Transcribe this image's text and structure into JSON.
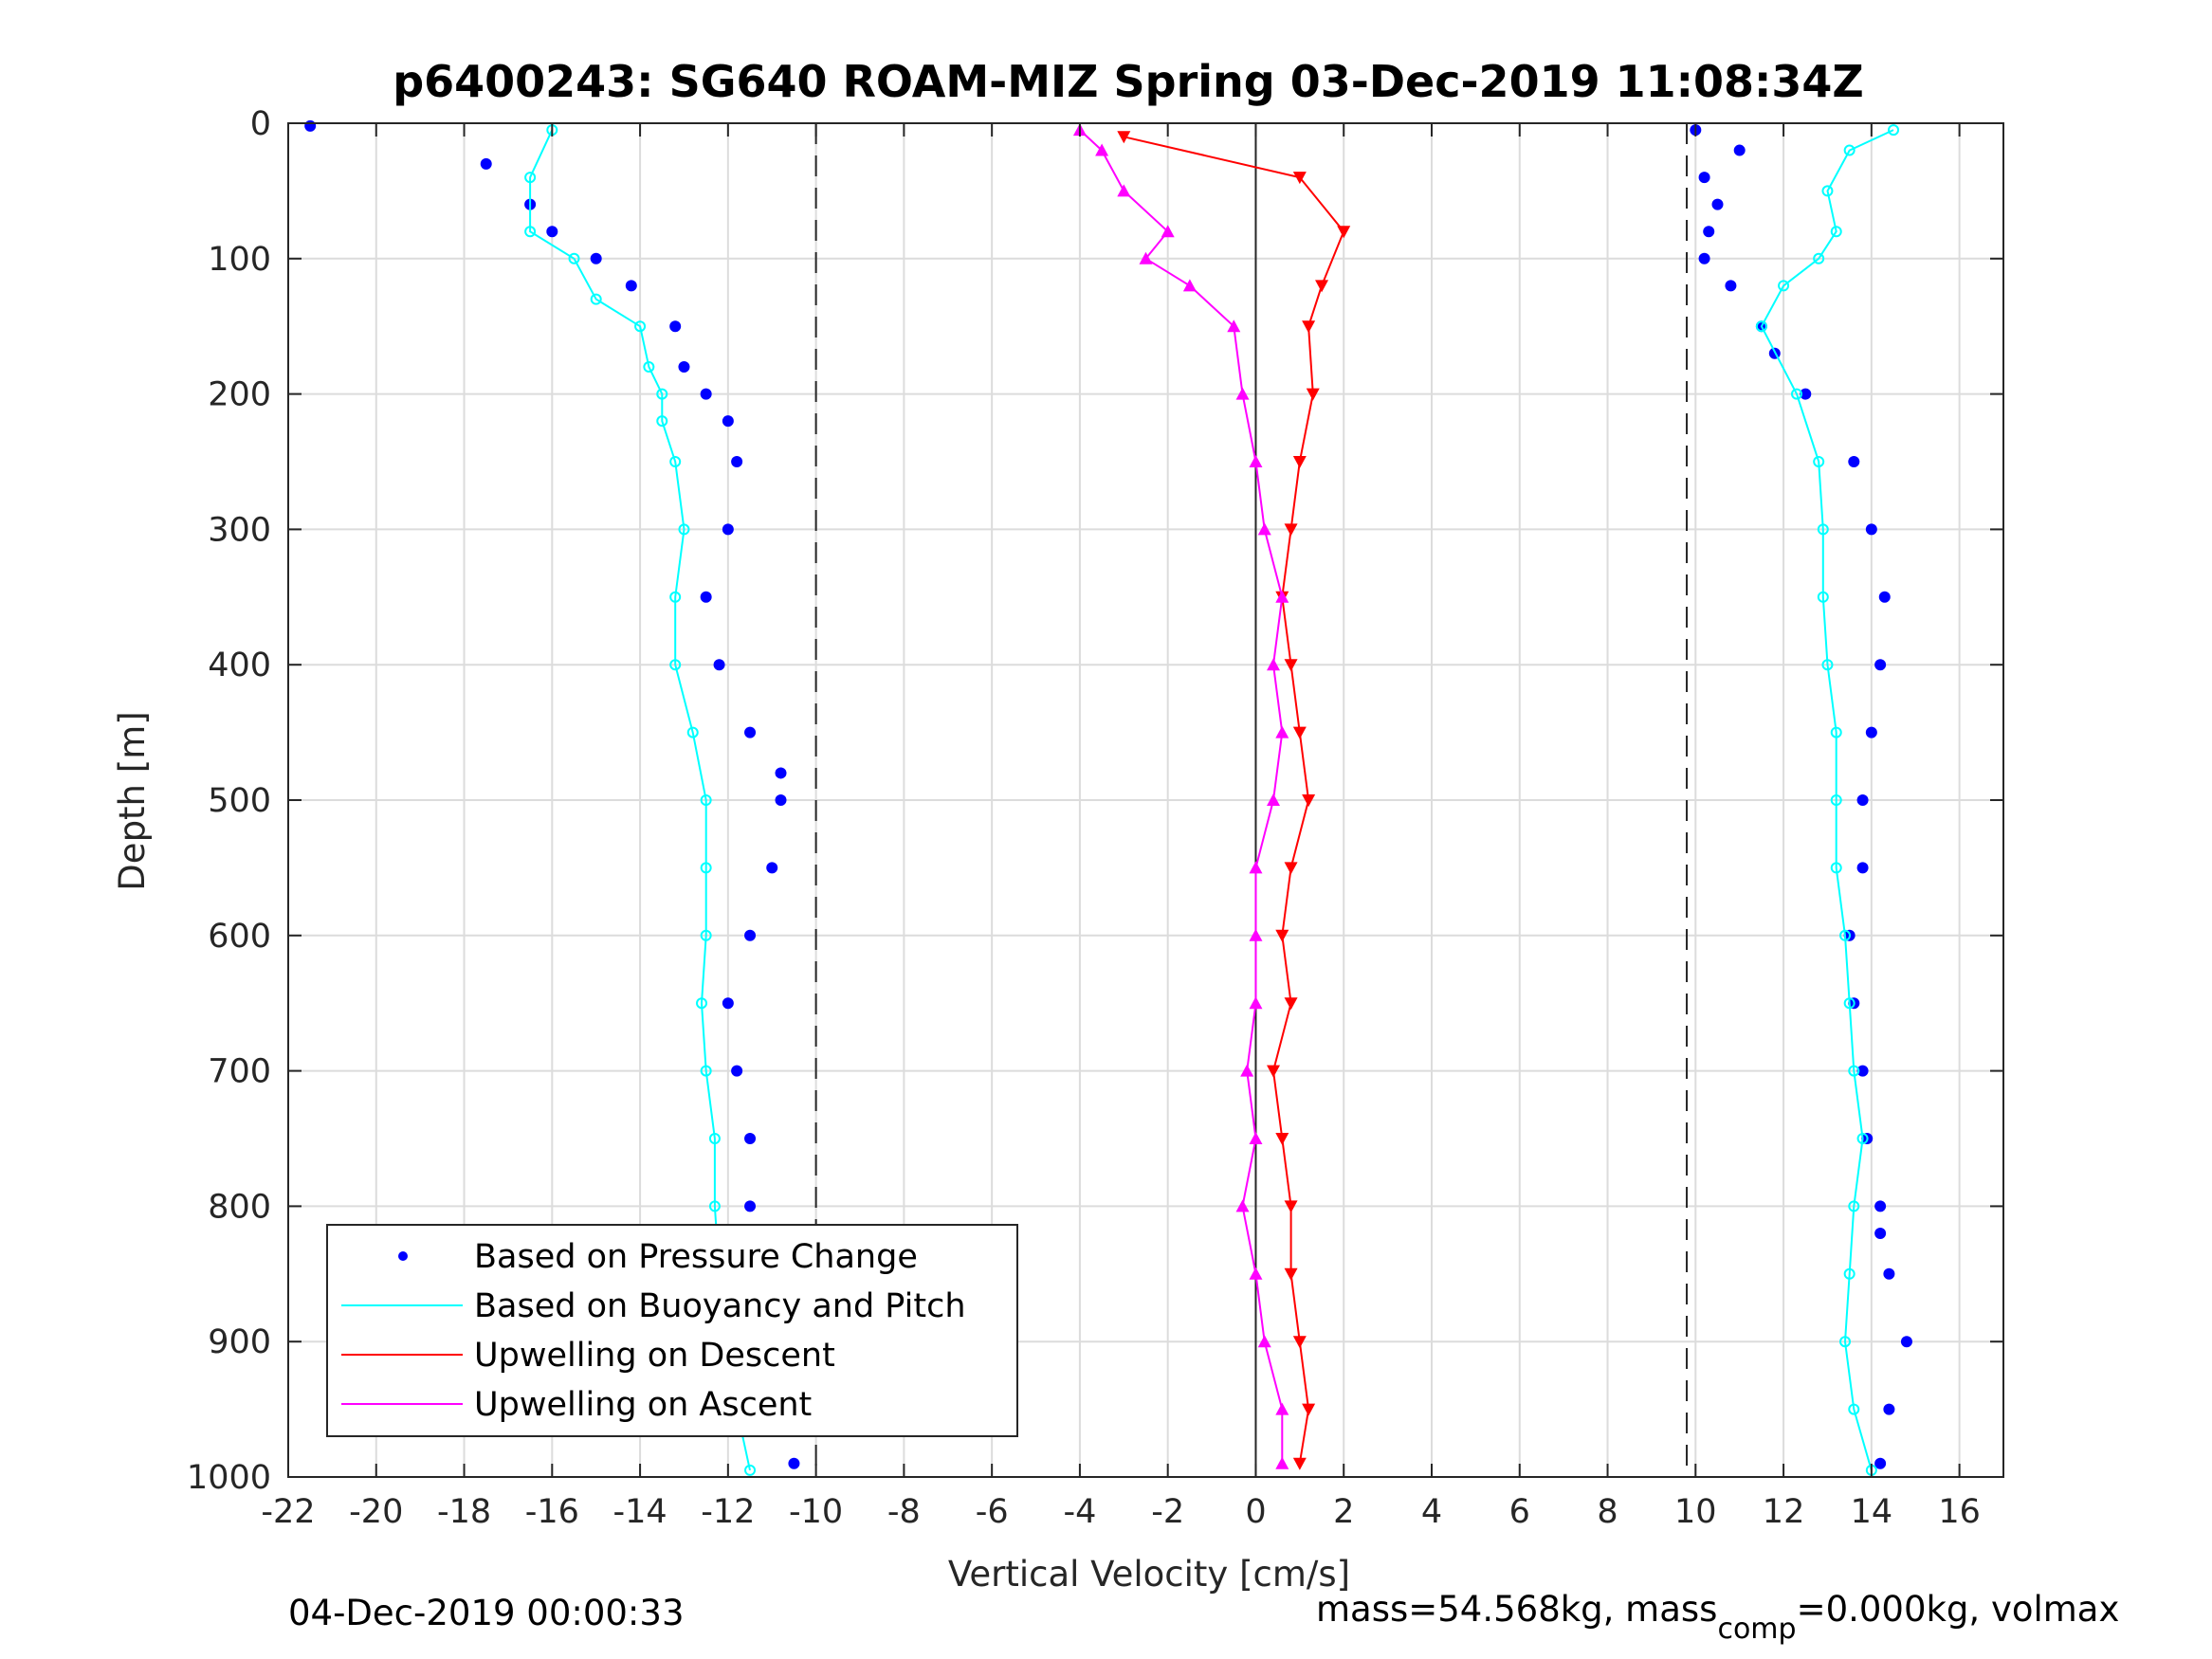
{
  "chart_data": {
    "type": "line",
    "title": "p6400243: SG640 ROAM-MIZ Spring 03-Dec-2019 11:08:34Z",
    "xlabel": "Vertical Velocity [cm/s]",
    "ylabel": "Depth [m]",
    "xlim": [
      -22,
      17
    ],
    "ylim": [
      1000,
      0
    ],
    "y_reversed": true,
    "grid": true,
    "xticks": [
      "-22",
      "-20",
      "-18",
      "-16",
      "-14",
      "-12",
      "-10",
      "-8",
      "-6",
      "-4",
      "-2",
      "0",
      "2",
      "4",
      "6",
      "8",
      "10",
      "12",
      "14",
      "16"
    ],
    "yticks": [
      "0",
      "100",
      "200",
      "300",
      "400",
      "500",
      "600",
      "700",
      "800",
      "900",
      "1000"
    ],
    "reference_lines": [
      {
        "x": -10,
        "style": "dashed"
      },
      {
        "x": 0,
        "style": "solid"
      },
      {
        "x": 9.8,
        "style": "dashed"
      }
    ],
    "legend_location": "bottom-left",
    "series": [
      {
        "name": "Based on Pressure Change",
        "marker": "dot",
        "color": "#0000ff",
        "segments": [
          {
            "depth": [
              2,
              30,
              60,
              80,
              100,
              120,
              150,
              180,
              200,
              220,
              250,
              300,
              350,
              400,
              450,
              480,
              500,
              550,
              600,
              650,
              700,
              750,
              800,
              850,
              900,
              950,
              990
            ],
            "velocity": [
              -21.5,
              -17.5,
              -16.5,
              -16,
              -15,
              -14.2,
              -13.2,
              -13,
              -12.5,
              -12,
              -11.8,
              -12,
              -12.5,
              -12.2,
              -11.5,
              -10.8,
              -10.8,
              -11,
              -11.5,
              -12,
              -11.8,
              -11.5,
              -11.5,
              -11.2,
              -11,
              -10.5,
              -10.5
            ]
          },
          {
            "depth": [
              990,
              950,
              900,
              850,
              820,
              800,
              750,
              700,
              650,
              600,
              550,
              500,
              450,
              400,
              350,
              300,
              250,
              200,
              170,
              150,
              120,
              100,
              80,
              60,
              40,
              20,
              5
            ],
            "velocity": [
              14.2,
              14.4,
              14.8,
              14.4,
              14.2,
              14.2,
              13.9,
              13.8,
              13.6,
              13.5,
              13.8,
              13.8,
              14,
              14.2,
              14.3,
              14,
              13.6,
              12.5,
              11.8,
              11.5,
              10.8,
              10.2,
              10.3,
              10.5,
              10.2,
              11,
              10
            ]
          }
        ]
      },
      {
        "name": "Based on Buoyancy and Pitch",
        "marker": "circle-line",
        "color": "#00ffff",
        "segments": [
          {
            "depth": [
              5,
              40,
              80,
              100,
              130,
              150,
              180,
              200,
              220,
              250,
              300,
              350,
              400,
              450,
              500,
              550,
              600,
              650,
              700,
              750,
              800,
              850,
              900,
              950,
              995
            ],
            "velocity": [
              -16,
              -16.5,
              -16.5,
              -15.5,
              -15,
              -14,
              -13.8,
              -13.5,
              -13.5,
              -13.2,
              -13,
              -13.2,
              -13.2,
              -12.8,
              -12.5,
              -12.5,
              -12.5,
              -12.6,
              -12.5,
              -12.3,
              -12.3,
              -12.2,
              -12,
              -11.8,
              -11.5
            ]
          },
          {
            "depth": [
              995,
              950,
              900,
              850,
              800,
              750,
              700,
              650,
              600,
              550,
              500,
              450,
              400,
              350,
              300,
              250,
              200,
              150,
              120,
              100,
              80,
              50,
              20,
              5
            ],
            "velocity": [
              14,
              13.6,
              13.4,
              13.5,
              13.6,
              13.8,
              13.6,
              13.5,
              13.4,
              13.2,
              13.2,
              13.2,
              13,
              12.9,
              12.9,
              12.8,
              12.3,
              11.5,
              12,
              12.8,
              13.2,
              13,
              13.5,
              14.5
            ]
          }
        ]
      },
      {
        "name": "Upwelling on Descent",
        "marker": "triangle-down",
        "color": "#ff0000",
        "depth": [
          10,
          40,
          80,
          120,
          150,
          200,
          250,
          300,
          350,
          400,
          450,
          500,
          550,
          600,
          650,
          700,
          750,
          800,
          850,
          900,
          950,
          990
        ],
        "velocity": [
          -3,
          1,
          2,
          1.5,
          1.2,
          1.3,
          1,
          0.8,
          0.6,
          0.8,
          1,
          1.2,
          0.8,
          0.6,
          0.8,
          0.4,
          0.6,
          0.8,
          0.8,
          1,
          1.2,
          1
        ]
      },
      {
        "name": "Upwelling on Ascent",
        "marker": "triangle-up",
        "color": "#ff00ff",
        "depth": [
          990,
          950,
          900,
          850,
          800,
          750,
          700,
          650,
          600,
          550,
          500,
          450,
          400,
          350,
          300,
          250,
          200,
          150,
          120,
          100,
          80,
          50,
          20,
          5
        ],
        "velocity": [
          0.6,
          0.6,
          0.2,
          0,
          -0.3,
          0,
          -0.2,
          0,
          0,
          0,
          0.4,
          0.6,
          0.4,
          0.6,
          0.2,
          0,
          -0.3,
          -0.5,
          -1.5,
          -2.5,
          -2,
          -3,
          -3.5,
          -4
        ]
      }
    ]
  },
  "footer": {
    "timestamp": "04-Dec-2019 00:00:33",
    "mass_prefix": "mass=54.568kg, mass",
    "mass_subscript": "comp",
    "mass_suffix": "=0.000kg, volmax"
  }
}
